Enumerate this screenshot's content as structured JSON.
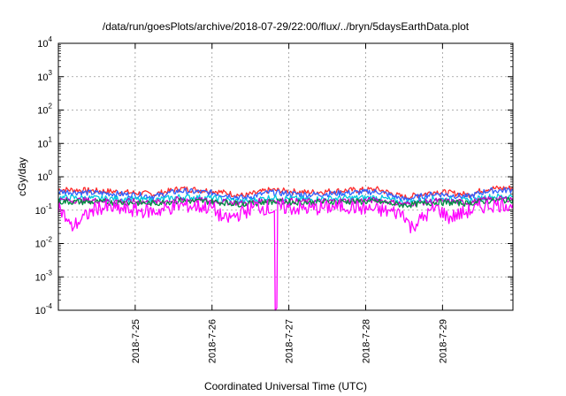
{
  "chart_data": {
    "type": "line",
    "title": "/data/run/goesPlots/archive/2018-07-29/22:00/flux/../bryn/5daysEarthData.plot",
    "xlabel": "Coordinated Universal Time (UTC)",
    "ylabel": "cGy/day",
    "y_scale": "log",
    "ylim": [
      0.0001,
      10000
    ],
    "xlim": [
      "2018-07-24 00:00",
      "2018-07-29 22:00"
    ],
    "x_ticks": [
      "2018-7-25",
      "2018-7-26",
      "2018-7-27",
      "2018-7-28",
      "2018-7-29"
    ],
    "y_ticks": [
      {
        "base": "10",
        "exp": "4"
      },
      {
        "base": "10",
        "exp": "3"
      },
      {
        "base": "10",
        "exp": "2"
      },
      {
        "base": "10",
        "exp": "1"
      },
      {
        "base": "10",
        "exp": "0"
      },
      {
        "base": "10",
        "exp": "-1"
      },
      {
        "base": "10",
        "exp": "-2"
      },
      {
        "base": "10",
        "exp": "-3"
      },
      {
        "base": "10",
        "exp": "-4"
      }
    ],
    "grid": true,
    "series": [
      {
        "color": "#ff2a2a",
        "points": [
          [
            "2018-07-24 00:00",
            0.42
          ],
          [
            "2018-07-24 18:00",
            0.36
          ],
          [
            "2018-07-25 06:00",
            0.3
          ],
          [
            "2018-07-25 14:00",
            0.44
          ],
          [
            "2018-07-26 00:00",
            0.38
          ],
          [
            "2018-07-26 10:00",
            0.27
          ],
          [
            "2018-07-26 18:00",
            0.4
          ],
          [
            "2018-07-27 06:00",
            0.34
          ],
          [
            "2018-07-27 18:00",
            0.39
          ],
          [
            "2018-07-28 04:00",
            0.42
          ],
          [
            "2018-07-28 12:00",
            0.24
          ],
          [
            "2018-07-28 22:00",
            0.36
          ],
          [
            "2018-07-29 08:00",
            0.29
          ],
          [
            "2018-07-29 14:00",
            0.44
          ],
          [
            "2018-07-29 22:00",
            0.46
          ]
        ]
      },
      {
        "color": "#3060ff",
        "points": [
          [
            "2018-07-24 00:00",
            0.36
          ],
          [
            "2018-07-24 18:00",
            0.31
          ],
          [
            "2018-07-25 06:00",
            0.26
          ],
          [
            "2018-07-25 14:00",
            0.38
          ],
          [
            "2018-07-26 00:00",
            0.33
          ],
          [
            "2018-07-26 10:00",
            0.23
          ],
          [
            "2018-07-26 18:00",
            0.34
          ],
          [
            "2018-07-27 06:00",
            0.29
          ],
          [
            "2018-07-27 18:00",
            0.33
          ],
          [
            "2018-07-28 04:00",
            0.36
          ],
          [
            "2018-07-28 12:00",
            0.21
          ],
          [
            "2018-07-28 22:00",
            0.31
          ],
          [
            "2018-07-29 08:00",
            0.25
          ],
          [
            "2018-07-29 14:00",
            0.38
          ],
          [
            "2018-07-29 22:00",
            0.4
          ]
        ]
      },
      {
        "color": "#00c8e0",
        "points": [
          [
            "2018-07-24 00:00",
            0.24
          ],
          [
            "2018-07-24 18:00",
            0.22
          ],
          [
            "2018-07-25 06:00",
            0.2
          ],
          [
            "2018-07-25 14:00",
            0.25
          ],
          [
            "2018-07-26 00:00",
            0.23
          ],
          [
            "2018-07-26 10:00",
            0.18
          ],
          [
            "2018-07-26 18:00",
            0.24
          ],
          [
            "2018-07-27 06:00",
            0.21
          ],
          [
            "2018-07-27 18:00",
            0.23
          ],
          [
            "2018-07-28 04:00",
            0.24
          ],
          [
            "2018-07-28 12:00",
            0.17
          ],
          [
            "2018-07-28 22:00",
            0.22
          ],
          [
            "2018-07-29 08:00",
            0.19
          ],
          [
            "2018-07-29 14:00",
            0.25
          ],
          [
            "2018-07-29 22:00",
            0.26
          ]
        ]
      },
      {
        "color": "#c000c0",
        "points": [
          [
            "2018-07-24 00:00",
            0.2
          ],
          [
            "2018-07-24 18:00",
            0.19
          ],
          [
            "2018-07-25 06:00",
            0.17
          ],
          [
            "2018-07-25 14:00",
            0.21
          ],
          [
            "2018-07-26 00:00",
            0.19
          ],
          [
            "2018-07-26 10:00",
            0.16
          ],
          [
            "2018-07-26 18:00",
            0.2
          ],
          [
            "2018-07-27 06:00",
            0.18
          ],
          [
            "2018-07-27 18:00",
            0.19
          ],
          [
            "2018-07-28 04:00",
            0.2
          ],
          [
            "2018-07-28 12:00",
            0.15
          ],
          [
            "2018-07-28 22:00",
            0.19
          ],
          [
            "2018-07-29 08:00",
            0.17
          ],
          [
            "2018-07-29 14:00",
            0.21
          ],
          [
            "2018-07-29 22:00",
            0.22
          ]
        ]
      },
      {
        "color": "#009040",
        "points": [
          [
            "2018-07-24 00:00",
            0.18
          ],
          [
            "2018-07-24 18:00",
            0.17
          ],
          [
            "2018-07-25 06:00",
            0.16
          ],
          [
            "2018-07-25 14:00",
            0.19
          ],
          [
            "2018-07-26 00:00",
            0.18
          ],
          [
            "2018-07-26 10:00",
            0.15
          ],
          [
            "2018-07-26 18:00",
            0.18
          ],
          [
            "2018-07-27 06:00",
            0.17
          ],
          [
            "2018-07-27 18:00",
            0.18
          ],
          [
            "2018-07-28 04:00",
            0.18
          ],
          [
            "2018-07-28 12:00",
            0.14
          ],
          [
            "2018-07-28 22:00",
            0.17
          ],
          [
            "2018-07-29 08:00",
            0.16
          ],
          [
            "2018-07-29 14:00",
            0.19
          ],
          [
            "2018-07-29 22:00",
            0.2
          ]
        ]
      },
      {
        "color": "#ff00ff",
        "points": [
          [
            "2018-07-24 00:00",
            0.14
          ],
          [
            "2018-07-24 04:00",
            0.03
          ],
          [
            "2018-07-24 12:00",
            0.12
          ],
          [
            "2018-07-25 06:00",
            0.09
          ],
          [
            "2018-07-25 14:00",
            0.14
          ],
          [
            "2018-07-26 00:00",
            0.12
          ],
          [
            "2018-07-26 04:00",
            0.05
          ],
          [
            "2018-07-26 14:00",
            0.13
          ],
          [
            "2018-07-26 19:30",
            0.1
          ],
          [
            "2018-07-26 19:45",
            0.0001
          ],
          [
            "2018-07-26 20:15",
            0.0001
          ],
          [
            "2018-07-26 20:30",
            0.12
          ],
          [
            "2018-07-27 06:00",
            0.11
          ],
          [
            "2018-07-27 18:00",
            0.13
          ],
          [
            "2018-07-28 12:00",
            0.08
          ],
          [
            "2018-07-28 14:00",
            0.03
          ],
          [
            "2018-07-28 22:00",
            0.12
          ],
          [
            "2018-07-29 02:00",
            0.06
          ],
          [
            "2018-07-29 14:00",
            0.14
          ],
          [
            "2018-07-29 22:00",
            0.15
          ]
        ]
      }
    ]
  }
}
